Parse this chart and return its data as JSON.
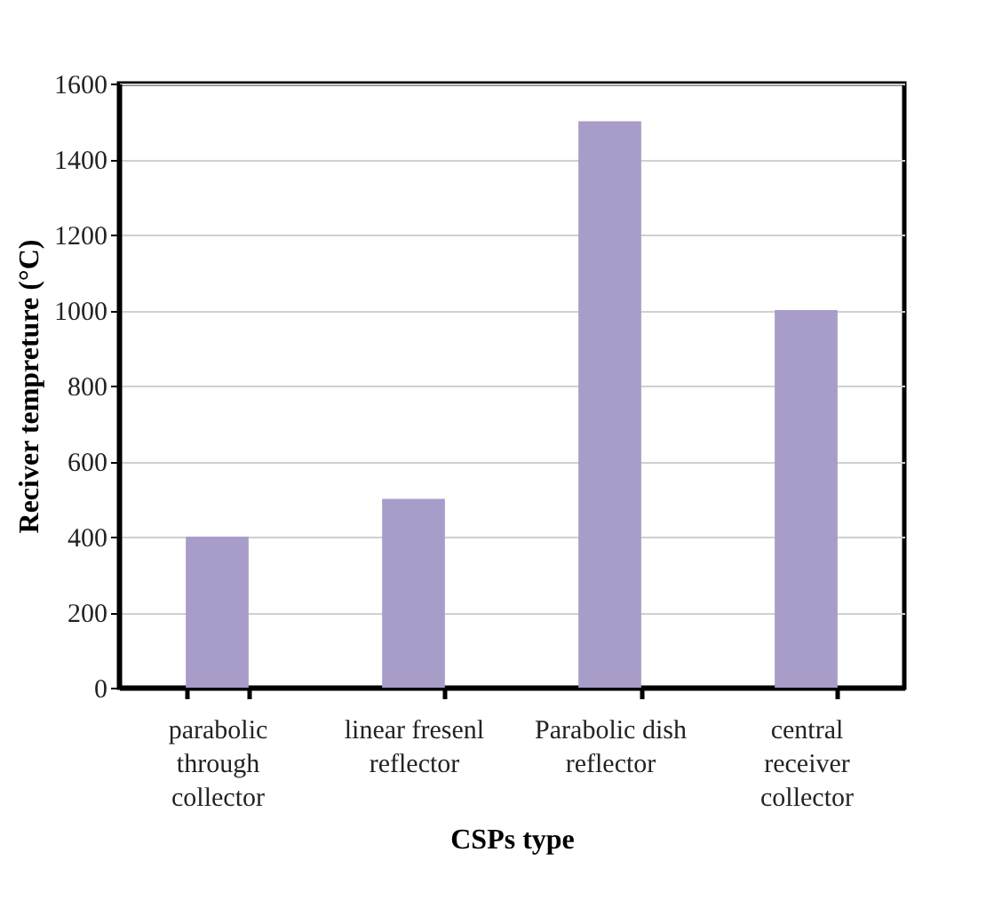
{
  "chart_data": {
    "type": "bar",
    "xlabel": "CSPs type",
    "ylabel": "Reciver tempreture (°C)",
    "categories": [
      "parabolic through collector",
      "linear fresenl reflector",
      "Parabolic dish reflector",
      "central receiver collector"
    ],
    "values": [
      400,
      500,
      1500,
      1000
    ],
    "color": "#a89cc8",
    "ylim": [
      0,
      1600
    ],
    "yticks": [
      0,
      200,
      400,
      600,
      800,
      1000,
      1200,
      1400,
      1600
    ],
    "grid": "y"
  }
}
